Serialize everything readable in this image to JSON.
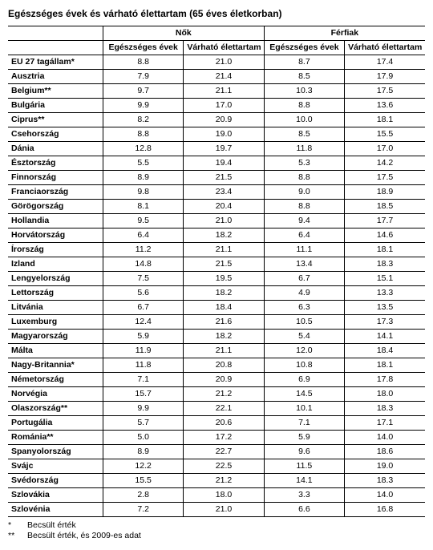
{
  "title": "Egészséges évek és várható élettartam (65 éves életkorban)",
  "group_headers": [
    "Nők",
    "Férfiak"
  ],
  "sub_headers": [
    "Egészséges évek",
    "Várható élettartam",
    "Egészséges évek",
    "Várható élettartam"
  ],
  "rows": [
    {
      "label": "EU 27 tagállam*",
      "v": [
        "8.8",
        "21.0",
        "8.7",
        "17.4"
      ]
    },
    {
      "label": "Ausztria",
      "v": [
        "7.9",
        "21.4",
        "8.5",
        "17.9"
      ]
    },
    {
      "label": "Belgium**",
      "v": [
        "9.7",
        "21.1",
        "10.3",
        "17.5"
      ]
    },
    {
      "label": "Bulgária",
      "v": [
        "9.9",
        "17.0",
        "8.8",
        "13.6"
      ]
    },
    {
      "label": "Ciprus**",
      "v": [
        "8.2",
        "20.9",
        "10.0",
        "18.1"
      ]
    },
    {
      "label": "Csehország",
      "v": [
        "8.8",
        "19.0",
        "8.5",
        "15.5"
      ]
    },
    {
      "label": "Dánia",
      "v": [
        "12.8",
        "19.7",
        "11.8",
        "17.0"
      ]
    },
    {
      "label": "Észtország",
      "v": [
        "5.5",
        "19.4",
        "5.3",
        "14.2"
      ]
    },
    {
      "label": "Finnország",
      "v": [
        "8.9",
        "21.5",
        "8.8",
        "17.5"
      ]
    },
    {
      "label": "Franciaország",
      "v": [
        "9.8",
        "23.4",
        "9.0",
        "18.9"
      ]
    },
    {
      "label": "Görögország",
      "v": [
        "8.1",
        "20.4",
        "8.8",
        "18.5"
      ]
    },
    {
      "label": "Hollandia",
      "v": [
        "9.5",
        "21.0",
        "9.4",
        "17.7"
      ]
    },
    {
      "label": "Horvátország",
      "v": [
        "6.4",
        "18.2",
        "6.4",
        "14.6"
      ]
    },
    {
      "label": "Írország",
      "v": [
        "11.2",
        "21.1",
        "11.1",
        "18.1"
      ]
    },
    {
      "label": "Izland",
      "v": [
        "14.8",
        "21.5",
        "13.4",
        "18.3"
      ]
    },
    {
      "label": "Lengyelország",
      "v": [
        "7.5",
        "19.5",
        "6.7",
        "15.1"
      ]
    },
    {
      "label": "Lettország",
      "v": [
        "5.6",
        "18.2",
        "4.9",
        "13.3"
      ]
    },
    {
      "label": "Litvánia",
      "v": [
        "6.7",
        "18.4",
        "6.3",
        "13.5"
      ]
    },
    {
      "label": "Luxemburg",
      "v": [
        "12.4",
        "21.6",
        "10.5",
        "17.3"
      ]
    },
    {
      "label": "Magyarország",
      "v": [
        "5.9",
        "18.2",
        "5.4",
        "14.1"
      ]
    },
    {
      "label": "Málta",
      "v": [
        "11.9",
        "21.1",
        "12.0",
        "18.4"
      ]
    },
    {
      "label": "Nagy-Britannia*",
      "v": [
        "11.8",
        "20.8",
        "10.8",
        "18.1"
      ]
    },
    {
      "label": "Németország",
      "v": [
        "7.1",
        "20.9",
        "6.9",
        "17.8"
      ]
    },
    {
      "label": "Norvégia",
      "v": [
        "15.7",
        "21.2",
        "14.5",
        "18.0"
      ]
    },
    {
      "label": "Olaszország**",
      "v": [
        "9.9",
        "22.1",
        "10.1",
        "18.3"
      ]
    },
    {
      "label": "Portugália",
      "v": [
        "5.7",
        "20.6",
        "7.1",
        "17.1"
      ]
    },
    {
      "label": "Románia**",
      "v": [
        "5.0",
        "17.2",
        "5.9",
        "14.0"
      ]
    },
    {
      "label": "Spanyolország",
      "v": [
        "8.9",
        "22.7",
        "9.6",
        "18.6"
      ]
    },
    {
      "label": "Svájc",
      "v": [
        "12.2",
        "22.5",
        "11.5",
        "19.0"
      ]
    },
    {
      "label": "Svédország",
      "v": [
        "15.5",
        "21.2",
        "14.1",
        "18.3"
      ]
    },
    {
      "label": "Szlovákia",
      "v": [
        "2.8",
        "18.0",
        "3.3",
        "14.0"
      ]
    },
    {
      "label": "Szlovénia",
      "v": [
        "7.2",
        "21.0",
        "6.6",
        "16.8"
      ]
    }
  ],
  "footnotes": [
    {
      "mark": "*",
      "text": "Becsült érték"
    },
    {
      "mark": "**",
      "text": "Becsült érték, és 2009-es adat"
    }
  ]
}
